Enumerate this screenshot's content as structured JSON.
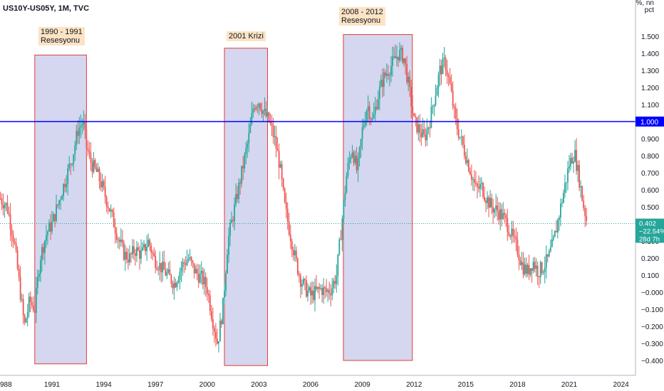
{
  "header": {
    "symbol": "US10Y-US05Y, 1M, TVC"
  },
  "axis_units": {
    "line1": "%, nn",
    "line2": "pct"
  },
  "annotations": [
    {
      "text": "1990 - 1991\nResesyonu"
    },
    {
      "text": "2001 Krizi"
    },
    {
      "text": "2008 - 2012\nResesyonu"
    }
  ],
  "price_badge": {
    "value": "0.402",
    "change": "−22.54%",
    "timer": "28d 7h"
  },
  "reference_line": {
    "value": "1.000"
  },
  "colors": {
    "up": "#26a69a",
    "down": "#ef5350",
    "hline": "#0000ff",
    "box_fill": "#c5cae9",
    "box_stroke": "#e53935",
    "annotation_bg": "#fce3c4"
  },
  "chart_data": {
    "type": "candlestick",
    "title": "US10Y-US05Y, 1M, TVC",
    "y_unit": "pct",
    "ylim": [
      -0.45,
      1.75
    ],
    "xlim": [
      1988.0,
      2025.6
    ],
    "grid": false,
    "x_ticks": [
      "988",
      "1991",
      "1994",
      "1997",
      "2000",
      "2003",
      "2006",
      "2009",
      "2012",
      "2015",
      "2018",
      "2021",
      "2024"
    ],
    "y_ticks": [
      "1.500",
      "1.400",
      "1.300",
      "1.200",
      "1.100",
      "1.000",
      "0.900",
      "0.800",
      "0.700",
      "0.600",
      "0.500",
      "0.400",
      "0.300",
      "0.200",
      "0.100",
      "−0.000",
      "−0.100",
      "−0.200",
      "−0.300",
      "−0.400"
    ],
    "horizontal_line": 1.0,
    "last_value": 0.402,
    "recession_boxes": [
      {
        "label": "1990 - 1991 Resesyonu",
        "x_start": 1990.0,
        "x_end": 1993.0,
        "y_low": -0.42,
        "y_high": 1.39
      },
      {
        "label": "2001 Krizi",
        "x_start": 2001.0,
        "x_end": 2003.5,
        "y_low": -0.43,
        "y_high": 1.43
      },
      {
        "label": "2008 - 2012 Resesyonu",
        "x_start": 2007.9,
        "x_end": 2011.9,
        "y_low": -0.4,
        "y_high": 1.51
      }
    ],
    "series_path": [
      [
        1988.0,
        0.55
      ],
      [
        1988.4,
        0.5
      ],
      [
        1988.8,
        0.3
      ],
      [
        1989.1,
        0.05
      ],
      [
        1989.4,
        -0.2
      ],
      [
        1989.7,
        -0.05
      ],
      [
        1990.0,
        -0.1
      ],
      [
        1990.3,
        0.2
      ],
      [
        1990.7,
        0.35
      ],
      [
        1991.0,
        0.4
      ],
      [
        1991.3,
        0.5
      ],
      [
        1991.6,
        0.6
      ],
      [
        1991.9,
        0.7
      ],
      [
        1992.2,
        0.8
      ],
      [
        1992.5,
        0.95
      ],
      [
        1992.8,
        1.0
      ],
      [
        1993.0,
        0.85
      ],
      [
        1993.3,
        0.75
      ],
      [
        1993.6,
        0.7
      ],
      [
        1993.9,
        0.62
      ],
      [
        1994.3,
        0.5
      ],
      [
        1994.6,
        0.4
      ],
      [
        1994.9,
        0.3
      ],
      [
        1995.2,
        0.22
      ],
      [
        1995.5,
        0.2
      ],
      [
        1995.8,
        0.25
      ],
      [
        1996.2,
        0.22
      ],
      [
        1996.6,
        0.3
      ],
      [
        1996.9,
        0.2
      ],
      [
        1997.3,
        0.15
      ],
      [
        1997.7,
        0.1
      ],
      [
        1998.1,
        0.05
      ],
      [
        1998.5,
        0.15
      ],
      [
        1998.9,
        0.2
      ],
      [
        1999.3,
        0.12
      ],
      [
        1999.7,
        0.08
      ],
      [
        2000.0,
        0.02
      ],
      [
        2000.3,
        -0.15
      ],
      [
        2000.6,
        -0.3
      ],
      [
        2000.9,
        -0.1
      ],
      [
        2001.2,
        0.3
      ],
      [
        2001.5,
        0.45
      ],
      [
        2001.8,
        0.6
      ],
      [
        2002.1,
        0.75
      ],
      [
        2002.4,
        0.9
      ],
      [
        2002.7,
        1.1
      ],
      [
        2003.0,
        1.12
      ],
      [
        2003.3,
        1.05
      ],
      [
        2003.6,
        1.0
      ],
      [
        2003.9,
        0.9
      ],
      [
        2004.2,
        0.75
      ],
      [
        2004.5,
        0.5
      ],
      [
        2004.8,
        0.35
      ],
      [
        2005.1,
        0.2
      ],
      [
        2005.4,
        0.08
      ],
      [
        2005.7,
        0.02
      ],
      [
        2006.0,
        -0.02
      ],
      [
        2006.3,
        0.0
      ],
      [
        2006.6,
        0.02
      ],
      [
        2006.9,
        0.0
      ],
      [
        2007.2,
        0.02
      ],
      [
        2007.5,
        0.1
      ],
      [
        2007.8,
        0.4
      ],
      [
        2008.1,
        0.7
      ],
      [
        2008.4,
        0.85
      ],
      [
        2008.7,
        0.7
      ],
      [
        2009.0,
        0.95
      ],
      [
        2009.3,
        1.1
      ],
      [
        2009.6,
        1.0
      ],
      [
        2009.9,
        1.15
      ],
      [
        2010.2,
        1.25
      ],
      [
        2010.5,
        1.3
      ],
      [
        2010.8,
        1.35
      ],
      [
        2011.1,
        1.4
      ],
      [
        2011.4,
        1.38
      ],
      [
        2011.7,
        1.2
      ],
      [
        2012.0,
        1.0
      ],
      [
        2012.3,
        0.95
      ],
      [
        2012.6,
        0.9
      ],
      [
        2012.9,
        1.0
      ],
      [
        2013.2,
        1.15
      ],
      [
        2013.5,
        1.3
      ],
      [
        2013.8,
        1.35
      ],
      [
        2014.1,
        1.2
      ],
      [
        2014.4,
        1.0
      ],
      [
        2014.7,
        0.9
      ],
      [
        2015.0,
        0.8
      ],
      [
        2015.3,
        0.7
      ],
      [
        2015.6,
        0.6
      ],
      [
        2015.9,
        0.62
      ],
      [
        2016.2,
        0.55
      ],
      [
        2016.5,
        0.5
      ],
      [
        2016.8,
        0.48
      ],
      [
        2017.1,
        0.45
      ],
      [
        2017.4,
        0.4
      ],
      [
        2017.7,
        0.32
      ],
      [
        2018.0,
        0.25
      ],
      [
        2018.3,
        0.15
      ],
      [
        2018.6,
        0.12
      ],
      [
        2018.9,
        0.18
      ],
      [
        2019.2,
        0.12
      ],
      [
        2019.5,
        0.15
      ],
      [
        2019.8,
        0.2
      ],
      [
        2020.1,
        0.3
      ],
      [
        2020.4,
        0.45
      ],
      [
        2020.7,
        0.6
      ],
      [
        2021.0,
        0.75
      ],
      [
        2021.3,
        0.82
      ],
      [
        2021.6,
        0.65
      ],
      [
        2021.8,
        0.52
      ],
      [
        2021.95,
        0.45
      ],
      [
        2022.05,
        0.402
      ]
    ]
  }
}
